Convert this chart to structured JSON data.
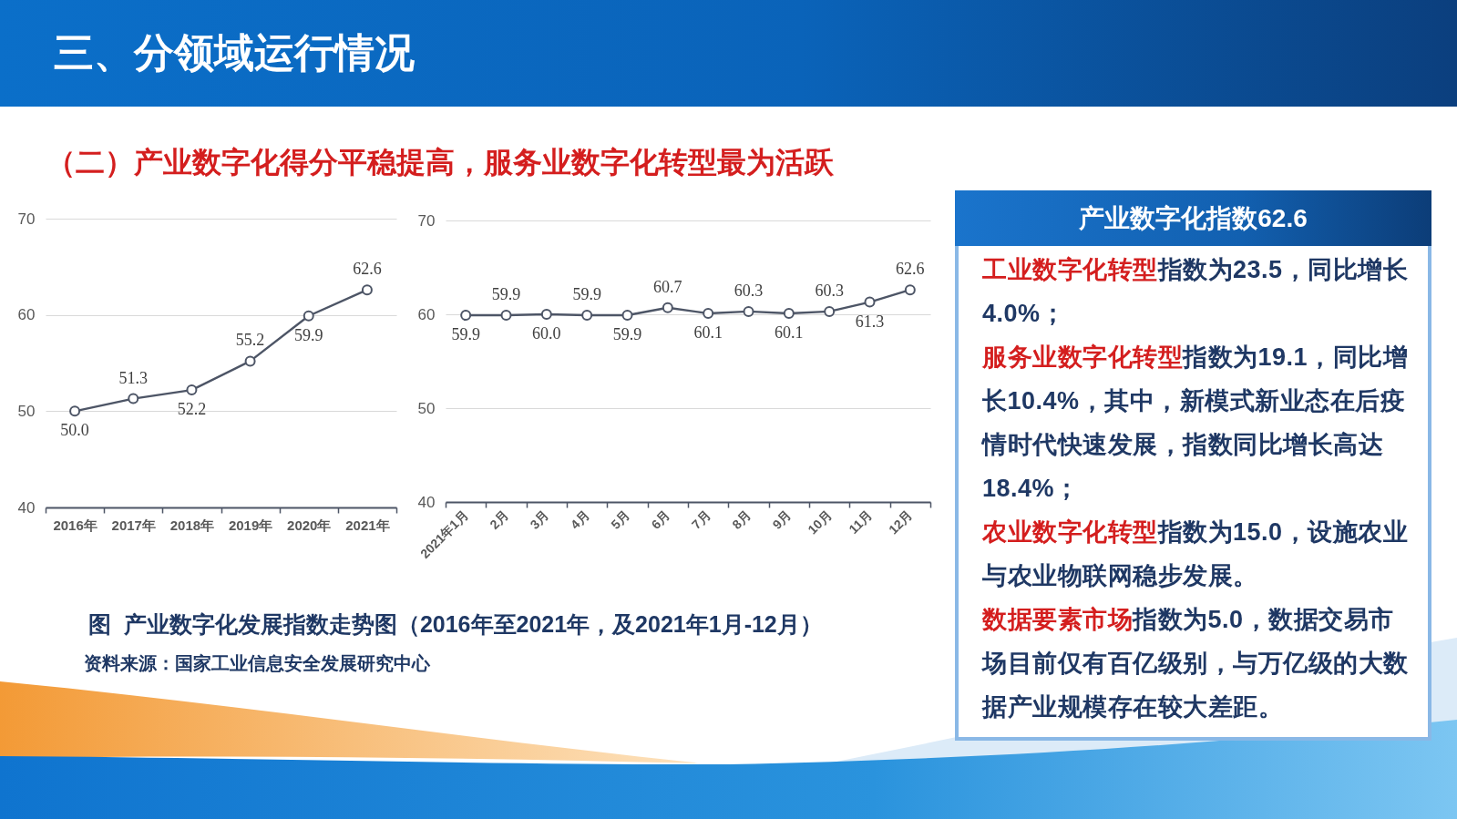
{
  "chart_data": [
    {
      "type": "line",
      "title": "三、分领域运行情况",
      "subtitle": "（二）产业数字化得分平稳提高，服务业数字化转型最为活跃",
      "categories": [
        "2016年",
        "2017年",
        "2018年",
        "2019年",
        "2020年",
        "2021年"
      ],
      "series": [
        {
          "color": "#4d5566",
          "values": [
            50.0,
            51.3,
            52.2,
            55.2,
            59.9,
            62.6
          ],
          "value_labels": [
            "50.0",
            "51.3",
            "52.2",
            "55.2",
            "59.9",
            "62.6"
          ]
        }
      ],
      "ylim": [
        40,
        70
      ],
      "yticks": [
        40,
        50,
        60,
        70
      ],
      "grid": "y",
      "marker": "circle",
      "annotations": [
        "图  产业数字化发展指数走势图（2016年至2021年，及2021年1月-12月）",
        "资料来源：国家工业信息安全发展研究中心"
      ]
    },
    {
      "type": "line",
      "categories": [
        "2021年1月",
        "2月",
        "3月",
        "4月",
        "5月",
        "6月",
        "7月",
        "8月",
        "9月",
        "10月",
        "11月",
        "12月"
      ],
      "series": [
        {
          "color": "#4d5566",
          "values": [
            59.9,
            59.9,
            60.0,
            59.9,
            59.9,
            60.7,
            60.1,
            60.3,
            60.1,
            60.3,
            61.3,
            62.6
          ],
          "value_labels": [
            "59.9",
            "59.9",
            "60.0",
            "59.9",
            "59.9",
            "60.7",
            "60.1",
            "60.3",
            "60.1",
            "60.3",
            "61.3",
            "62.6"
          ]
        }
      ],
      "ylim": [
        40,
        70
      ],
      "yticks": [
        40,
        50,
        60,
        70
      ],
      "grid": "y",
      "marker": "circle"
    },
    {
      "type": "other",
      "title": "产业数字化指数62.6",
      "annotations": [
        "工业数字化转型",
        "指数为23.5，同比增长",
        "4.0%；",
        "服务业数字化转型",
        "指数为19.1，同比增",
        "长10.4%，其中，新模式新业态在后疫情时代快速发展，指数同比增长高达18.4%；",
        "农业数字化转型",
        "指数为15.0，设施农业",
        "与农业物联网稳步发展。",
        "数据要素市场",
        "指数为5.0，数据交易市",
        "场目前仅有百亿级别，与万亿级的大数据产业规模存在较大差距。"
      ]
    }
  ]
}
